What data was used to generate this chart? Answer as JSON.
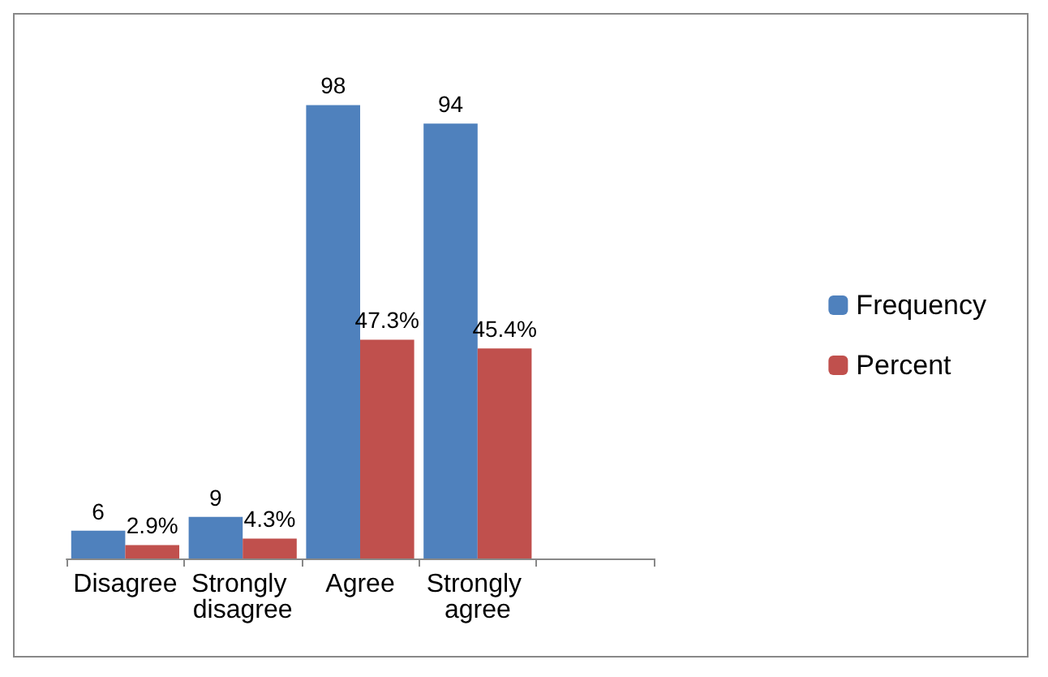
{
  "chart_data": {
    "type": "bar",
    "categories": [
      "Disagree",
      "Strongly disagree",
      "Agree",
      "Strongly agree",
      null
    ],
    "series": [
      {
        "name": "Frequency",
        "color": "#4f81bd",
        "values": [
          6,
          9,
          98,
          94,
          null
        ],
        "value_labels": [
          "6",
          "9",
          "98",
          "94",
          null
        ]
      },
      {
        "name": "Percent",
        "color": "#c0504d",
        "values": [
          2.9,
          4.3,
          47.3,
          45.4,
          null
        ],
        "value_labels": [
          "2.9%",
          "4.3%",
          "47.3%",
          "45.4%",
          null
        ]
      }
    ],
    "legend": "right",
    "grid": false
  }
}
